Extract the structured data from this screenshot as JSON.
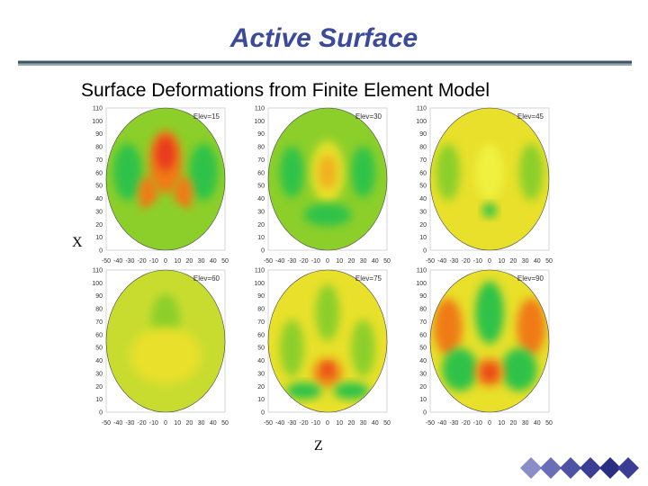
{
  "header": {
    "title": "Active Surface",
    "subtitle": "Surface Deformations from Finite Element Model"
  },
  "panels": [
    {
      "label": "Elev=15"
    },
    {
      "label": "Elev=30"
    },
    {
      "label": "Elev=45"
    },
    {
      "label": "Elev=60"
    },
    {
      "label": "Elev=75"
    },
    {
      "label": "Elev=90"
    }
  ],
  "yticks": [
    "0",
    "10",
    "20",
    "30",
    "40",
    "50",
    "60",
    "70",
    "80",
    "90",
    "100",
    "110"
  ],
  "xticks": [
    "-50",
    "-40",
    "-30",
    "-20",
    "-10",
    "0",
    "10",
    "20",
    "30",
    "40",
    "50"
  ],
  "axis_labels": {
    "x": "X",
    "z": "Z"
  }
}
